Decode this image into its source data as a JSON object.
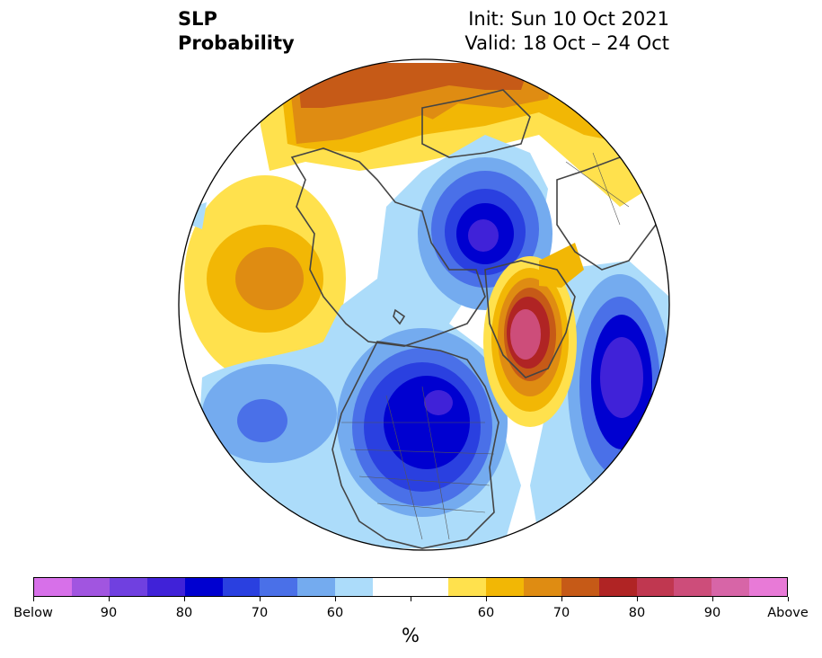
{
  "title": {
    "left_line1": "SLP",
    "left_line2": "Probability",
    "right_line1": "Init: Sun 10 Oct 2021",
    "right_line2": "Valid: 18 Oct – 24 Oct"
  },
  "map": {
    "projection": "north-polar-stereographic",
    "features": [
      "below-normal-pacific-low",
      "below-normal-north-america-low",
      "below-normal-scandinavia-low",
      "below-normal-siberia-low",
      "above-normal-north-atlantic-high",
      "above-normal-north-pacific-high",
      "above-normal-eurasia-ridge"
    ]
  },
  "colorbar": {
    "colors": [
      "#d770e9",
      "#a155e0",
      "#7040e0",
      "#4022d8",
      "#0000d0",
      "#2a40e0",
      "#4a70e8",
      "#74abef",
      "#acdcfa",
      "#ffffff",
      "#ffffff",
      "#ffe14d",
      "#f2b705",
      "#df8c12",
      "#c65a17",
      "#b02424",
      "#c03750",
      "#cd4d7a",
      "#d765a7",
      "#e87ad7"
    ],
    "tick_labels": [
      "Below",
      "90",
      "80",
      "70",
      "60",
      "60",
      "70",
      "80",
      "90",
      "Above"
    ],
    "unit": "%"
  }
}
